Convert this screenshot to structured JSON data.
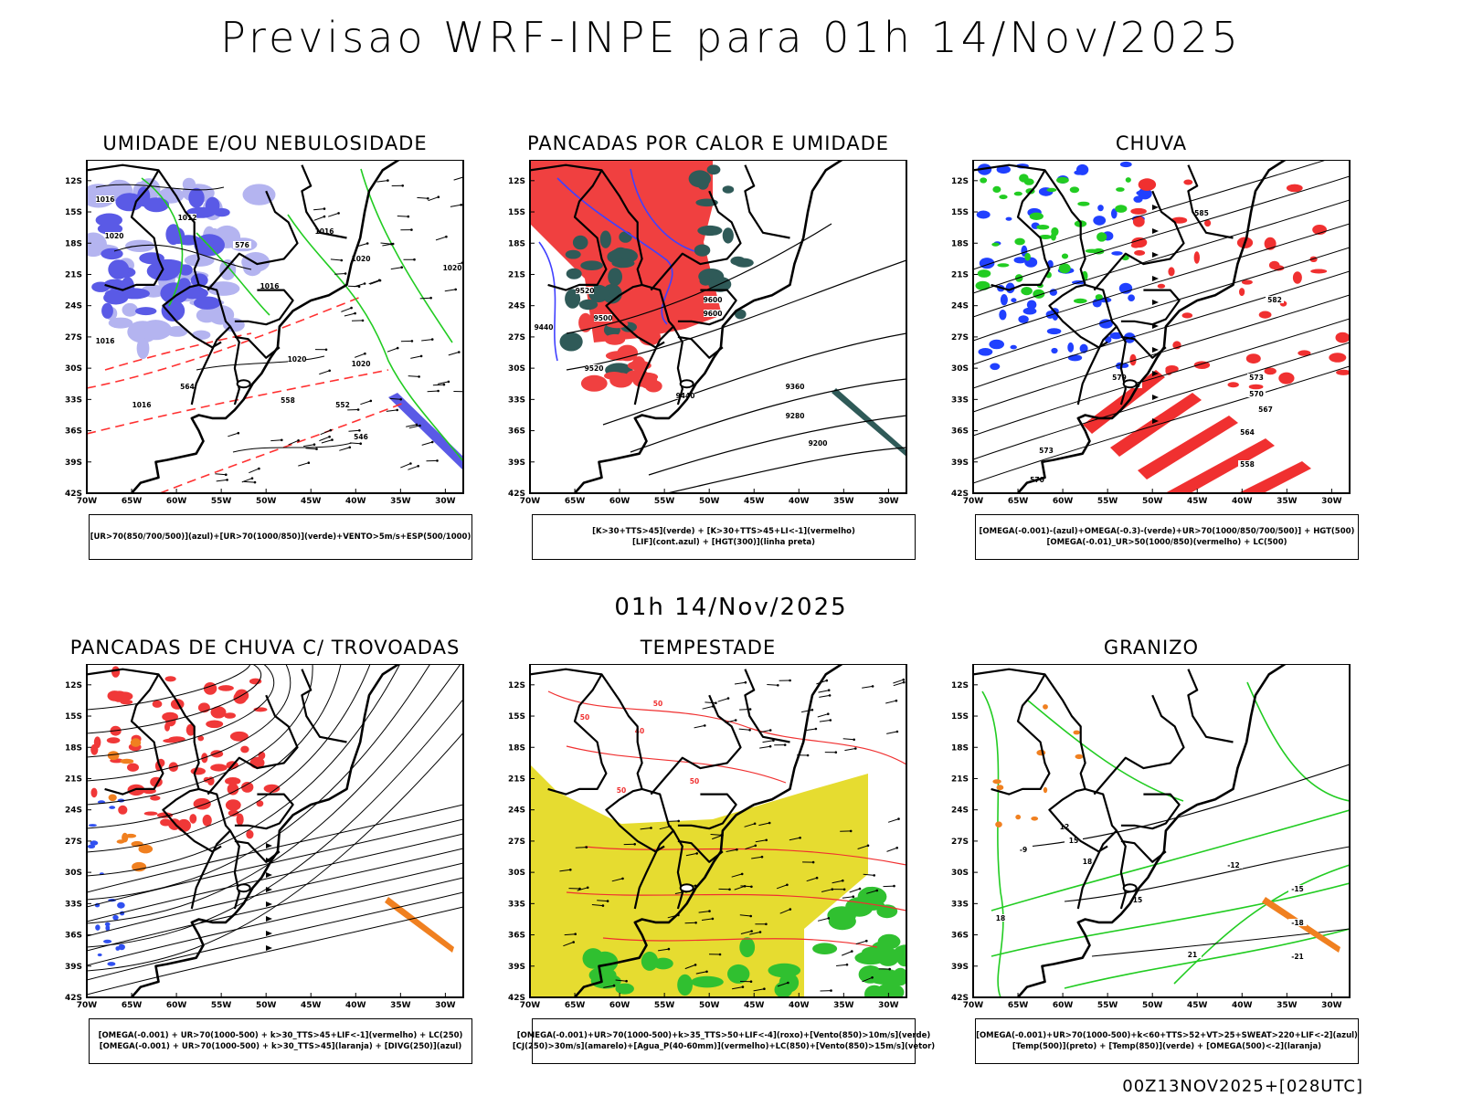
{
  "header": {
    "title": "Previsao WRF-INPE  para 01h 14/Nov/2025"
  },
  "mid_title": "01h 14/Nov/2025",
  "footer_stamp": "00Z13NOV2025+[028UTC]",
  "axes": {
    "lat_labels": [
      "12S",
      "15S",
      "18S",
      "21S",
      "24S",
      "27S",
      "30S",
      "33S",
      "36S",
      "39S",
      "42S"
    ],
    "lon_labels": [
      "70W",
      "65W",
      "60W",
      "55W",
      "50W",
      "45W",
      "40W",
      "35W",
      "30W"
    ]
  },
  "panels": [
    {
      "title": "UMIDADE E/OU NEBULOSIDADE",
      "legend": [
        "[UR>70(850/700/500)](azul)+[UR>70(1000/850)](verde)+VENTO>5m/s+ESP(500/1000)"
      ],
      "contour_labels": [
        "1016",
        "1012",
        "1020",
        "1016",
        "1020",
        "1016",
        "1016",
        "1020",
        "1020",
        "1020",
        "1016",
        "576",
        "564",
        "558",
        "552",
        "546"
      ],
      "colors": {
        "shade_main": "#5a5ae6",
        "shade_light": "#b4b4f0",
        "green": "#22cc22",
        "red": "#ff3030"
      }
    },
    {
      "title": "PANCADAS POR CALOR E UMIDADE",
      "legend": [
        "[K>30+TTS>45](verde) + [K>30+TTS>45+LI<-1](vermelho)",
        "[LIF](cont.azul) + [HGT(300)](linha preta)"
      ],
      "contour_labels": [
        "9500",
        "9520",
        "9440",
        "9520",
        "9360",
        "9280",
        "9200",
        "9600",
        "9440",
        "9600"
      ],
      "colors": {
        "red": "#f04040",
        "teal": "#2f5a58",
        "blue": "#4040ff"
      }
    },
    {
      "title": "CHUVA",
      "legend": [
        "[OMEGA(-0.001)-(azul)+OMEGA(-0.3)-(verde)+UR>70(1000/850/700/500)] + HGT(500)",
        "[OMEGA(-0.01)_UR>50(1000/850)(vermelho) + LC(500)"
      ],
      "contour_labels": [
        "582",
        "579",
        "576",
        "573",
        "570",
        "567",
        "564",
        "573",
        "570",
        "558",
        "585"
      ],
      "colors": {
        "blue": "#2040ff",
        "green": "#22cc22",
        "red": "#f03030"
      }
    },
    {
      "title": "PANCADAS DE CHUVA C/ TROVOADAS",
      "legend": [
        "[OMEGA(-0.001) + UR>70(1000-500) + k>30_TTS>45+LIF<-1](vermelho) + LC(250)",
        "[OMEGA(-0.001) + UR>70(1000-500) + k>30_TTS>45](laranja) + [DIVG(250)](azul)"
      ],
      "contour_labels": [],
      "colors": {
        "red": "#f03838",
        "orange": "#f08020",
        "blue": "#3050f0"
      }
    },
    {
      "title": "TEMPESTADE",
      "legend": [
        "[OMEGA(-0.001)+UR>70(1000-500)+k>35_TTS>50+LIF<-4](roxo)+[Vento(850)>10m/s](verde)",
        "[CJ(250)>30m/s](amarelo)+[Agua_P(40-60mm)](vermelho)+LC(850)+[Vento(850)>15m/s](vetor)"
      ],
      "contour_labels": [
        "50",
        "50",
        "50",
        "40",
        "50"
      ],
      "colors": {
        "yellow": "#e6dc30",
        "green": "#30c030",
        "red": "#f03030"
      }
    },
    {
      "title": "GRANIZO",
      "legend": [
        "[OMEGA(-0.001)+UR>70(1000-500)+k<60+TTS>52+VT>25+SWEAT>220+LIF<-2](azul)",
        "[Temp(500)](preto) + [Temp(850)](verde) + [OMEGA(500)<-2](laranja)"
      ],
      "contour_labels": [
        "-9",
        "-12",
        "15",
        "18",
        "-15",
        "-18",
        "-21",
        "15",
        "21",
        "18",
        "12"
      ],
      "colors": {
        "green": "#22cc22",
        "orange": "#f08020",
        "black": "#000000"
      }
    }
  ]
}
